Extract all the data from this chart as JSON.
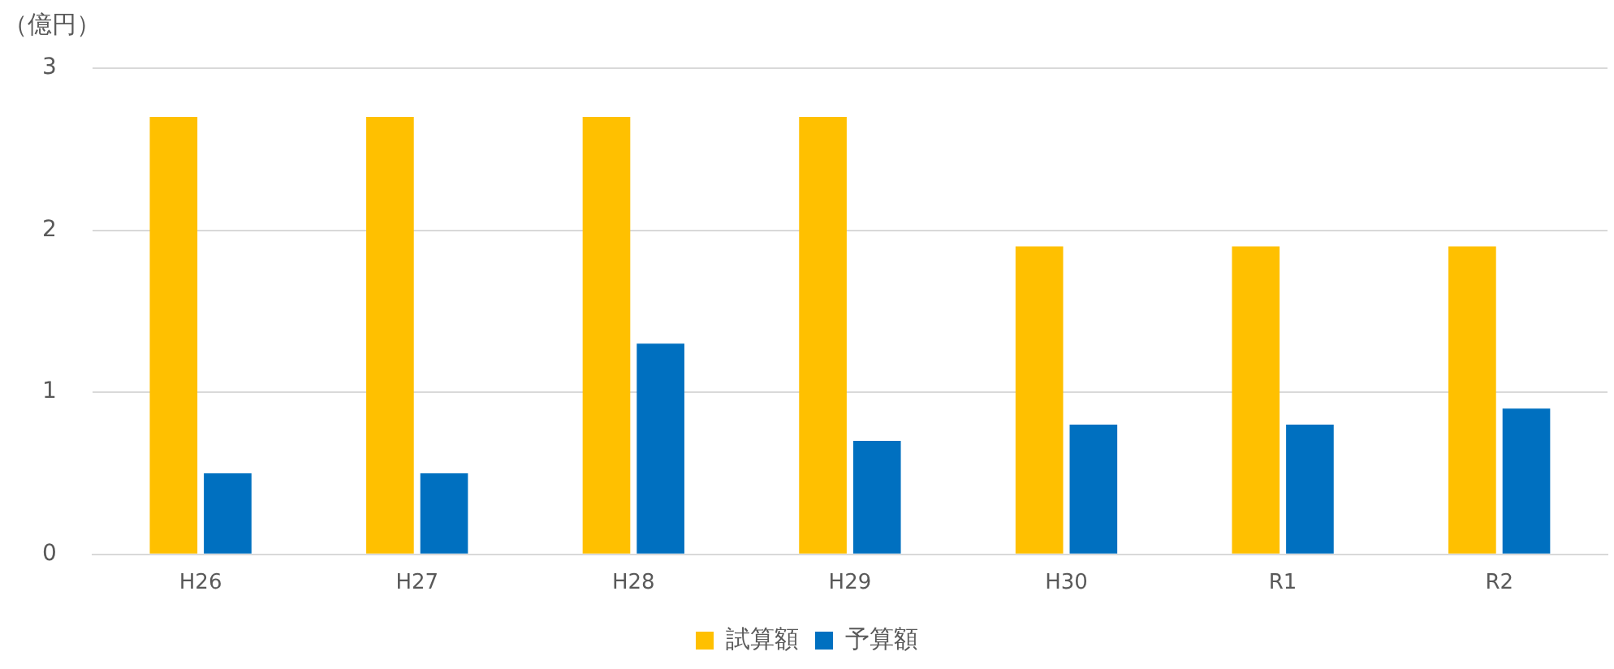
{
  "chart_data": {
    "type": "bar",
    "ylabel": "（億円）",
    "categories": [
      "H26",
      "H27",
      "H28",
      "H29",
      "H30",
      "R1",
      "R2"
    ],
    "series": [
      {
        "name": "試算額",
        "color": "#ffc000",
        "values": [
          2.7,
          2.7,
          2.7,
          2.7,
          1.9,
          1.9,
          1.9
        ]
      },
      {
        "name": "予算額",
        "color": "#0070c0",
        "values": [
          0.5,
          0.5,
          1.3,
          0.7,
          0.8,
          0.8,
          0.9
        ]
      }
    ],
    "ylim": [
      0,
      3
    ],
    "yticks": [
      0,
      1,
      2,
      3
    ],
    "grid": "y",
    "legend": "bottom"
  }
}
